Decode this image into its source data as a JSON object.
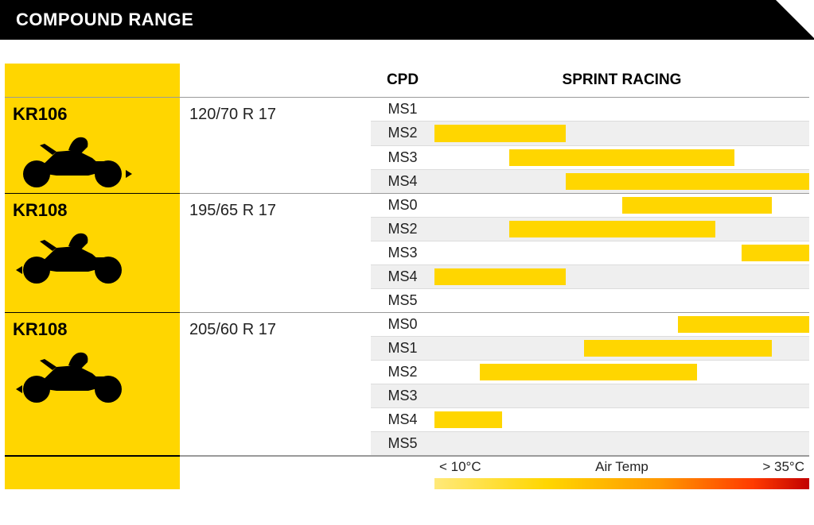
{
  "title": "COMPOUND RANGE",
  "colors": {
    "accent": "#ffd600",
    "bar": "#ffd600",
    "row_alt": "#efefef",
    "header_border": "#9a9a9a",
    "group_border": "#9a9a9a",
    "row_border": "#dcdcdc",
    "black": "#000000",
    "text": "#222222",
    "gradient": [
      "#ffe97a",
      "#ffd600",
      "#ff9900",
      "#ff3b00",
      "#c20000"
    ]
  },
  "header": {
    "cpd": "CPD",
    "sprint": "SPRINT RACING"
  },
  "scale": {
    "low": "< 10°C",
    "mid": "Air Temp",
    "high": "> 35°C"
  },
  "groups": [
    {
      "model": "KR106",
      "size": "120/70 R 17",
      "arrow": "rear",
      "rows": [
        {
          "cpd": "MS1",
          "bar": null
        },
        {
          "cpd": "MS2",
          "bar": {
            "start": 0,
            "end": 35
          }
        },
        {
          "cpd": "MS3",
          "bar": {
            "start": 20,
            "end": 80
          }
        },
        {
          "cpd": "MS4",
          "bar": {
            "start": 35,
            "end": 100
          }
        }
      ]
    },
    {
      "model": "KR108",
      "size": "195/65 R 17",
      "arrow": "front",
      "rows": [
        {
          "cpd": "MS0",
          "bar": {
            "start": 50,
            "end": 90
          }
        },
        {
          "cpd": "MS2",
          "bar": {
            "start": 20,
            "end": 75
          }
        },
        {
          "cpd": "MS3",
          "bar": {
            "start": 82,
            "end": 100
          }
        },
        {
          "cpd": "MS4",
          "bar": {
            "start": 0,
            "end": 35
          }
        },
        {
          "cpd": "MS5",
          "bar": null
        }
      ]
    },
    {
      "model": "KR108",
      "size": "205/60 R 17",
      "arrow": "front",
      "rows": [
        {
          "cpd": "MS0",
          "bar": {
            "start": 65,
            "end": 100
          }
        },
        {
          "cpd": "MS1",
          "bar": {
            "start": 40,
            "end": 90
          }
        },
        {
          "cpd": "MS2",
          "bar": {
            "start": 12,
            "end": 70
          }
        },
        {
          "cpd": "MS3",
          "bar": null
        },
        {
          "cpd": "MS4",
          "bar": {
            "start": 0,
            "end": 18
          }
        },
        {
          "cpd": "MS5",
          "bar": null
        }
      ]
    }
  ]
}
